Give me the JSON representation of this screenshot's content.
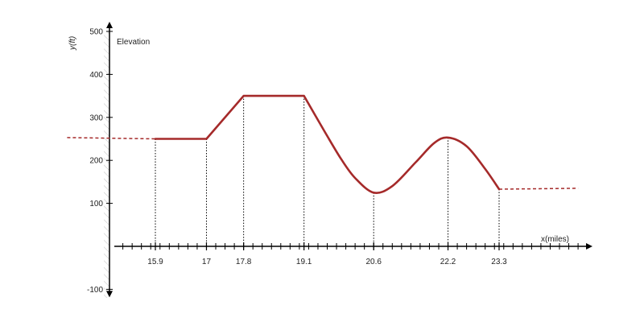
{
  "chart_data": {
    "type": "line",
    "title": "Elevation",
    "xlabel": "x(miles)",
    "ylabel": "y(ft)",
    "ylim": [
      -100,
      500
    ],
    "xlim": [
      14.0,
      25.5
    ],
    "y_ticks": [
      100,
      200,
      300,
      400,
      500,
      -100
    ],
    "x_ticks": [
      15.9,
      17,
      17.8,
      19.1,
      20.6,
      22.2,
      23.3
    ],
    "x_minor_step": 0.2,
    "grid": false,
    "series": [
      {
        "color": "#a52a2a",
        "points": [
          [
            15.9,
            250
          ],
          [
            17,
            250
          ],
          [
            17.8,
            350
          ],
          [
            19.1,
            350
          ],
          [
            19.55,
            266
          ],
          [
            19.9,
            203
          ],
          [
            20.2,
            159
          ],
          [
            20.6,
            125
          ],
          [
            21.0,
            140
          ],
          [
            21.5,
            195
          ],
          [
            21.9,
            240
          ],
          [
            22.2,
            253
          ],
          [
            22.6,
            233
          ],
          [
            23.0,
            180
          ],
          [
            23.3,
            133
          ]
        ]
      }
    ],
    "extensions": [
      {
        "style": "dashed",
        "color": "#a52a2a",
        "points": [
          [
            14.0,
            253
          ],
          [
            15.9,
            250
          ]
        ]
      },
      {
        "style": "dashed",
        "color": "#a52a2a",
        "points": [
          [
            23.3,
            133
          ],
          [
            25.0,
            135
          ]
        ]
      }
    ],
    "drop_lines_at": [
      15.9,
      17,
      17.8,
      19.1,
      20.6,
      22.2,
      23.3
    ]
  }
}
